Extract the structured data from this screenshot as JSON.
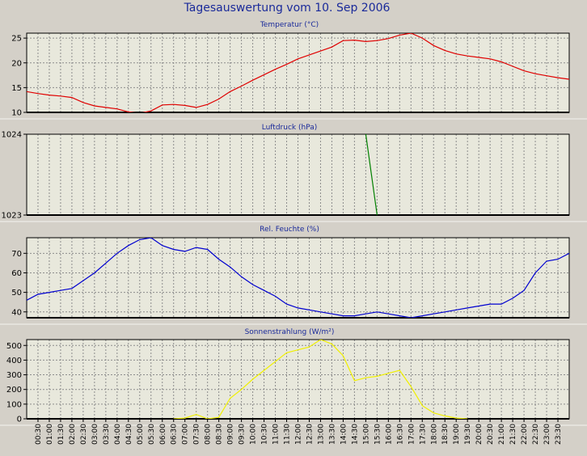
{
  "title": "Tagesauswertung vom 10. Sep 2006",
  "colors": {
    "background": "#d4d0c8",
    "plot_background": "#e8e8dc",
    "grid": "#8c8c8c",
    "title": "#1a2a9a",
    "temperature": "#e00000",
    "pressure": "#008000",
    "humidity": "#0000d0",
    "radiation": "#f0f000"
  },
  "chart_data": [
    {
      "type": "line",
      "title": "Temperatur (°C)",
      "ylim": [
        10,
        26
      ],
      "yticks": [
        10,
        15,
        20,
        25
      ],
      "grid": true,
      "series": [
        {
          "x": [
            0,
            0.5,
            1,
            1.5,
            2,
            2.5,
            3,
            3.5,
            4,
            4.5,
            5,
            5.5,
            6,
            6.5,
            7,
            7.5,
            8,
            8.5,
            9,
            9.5,
            10,
            10.5,
            11,
            11.5,
            12,
            12.5,
            13,
            13.5,
            14,
            14.5,
            15,
            15.5,
            16,
            16.5,
            17,
            17.5,
            18,
            18.5,
            19,
            19.5,
            20,
            20.5,
            21,
            21.5,
            22,
            22.5,
            23,
            23.5,
            24
          ],
          "y": [
            14.2,
            13.8,
            13.5,
            13.3,
            13.0,
            12.0,
            11.3,
            11.0,
            10.7,
            10.1,
            9.8,
            10.3,
            11.5,
            11.6,
            11.4,
            11.0,
            11.6,
            12.7,
            14.2,
            15.3,
            16.5,
            17.6,
            18.7,
            19.7,
            20.8,
            21.6,
            22.4,
            23.2,
            24.5,
            24.6,
            24.3,
            24.5,
            24.9,
            25.6,
            26.0,
            25.0,
            23.5,
            22.5,
            21.8,
            21.4,
            21.1,
            20.8,
            20.2,
            19.3,
            18.4,
            17.8,
            17.4,
            17.0,
            16.7
          ]
        }
      ]
    },
    {
      "type": "line",
      "title": "Luftdruck (hPa)",
      "ylim": [
        1023,
        1024
      ],
      "yticks": [
        1023,
        1024
      ],
      "grid": true,
      "series": [
        {
          "x": [
            15.0,
            15.5
          ],
          "y": [
            1024,
            1023
          ]
        }
      ]
    },
    {
      "type": "line",
      "title": "Rel. Feuchte (%)",
      "ylim": [
        37,
        78
      ],
      "yticks": [
        40,
        50,
        60,
        70
      ],
      "grid": true,
      "series": [
        {
          "x": [
            0,
            0.5,
            1,
            1.5,
            2,
            2.5,
            3,
            3.5,
            4,
            4.5,
            5,
            5.5,
            6,
            6.5,
            7,
            7.5,
            8,
            8.5,
            9,
            9.5,
            10,
            10.5,
            11,
            11.5,
            12,
            12.5,
            13,
            13.5,
            14,
            14.5,
            15,
            15.5,
            16,
            16.5,
            17,
            17.5,
            18,
            18.5,
            19,
            19.5,
            20,
            20.5,
            21,
            21.5,
            22,
            22.5,
            23,
            23.5,
            24
          ],
          "y": [
            46,
            49,
            50,
            51,
            52,
            56,
            60,
            65,
            70,
            74,
            77,
            78,
            74,
            72,
            71,
            73,
            72,
            67,
            63,
            58,
            54,
            51,
            48,
            44,
            42,
            41,
            40,
            39,
            38,
            38,
            39,
            40,
            39,
            38,
            37,
            38,
            39,
            40,
            41,
            42,
            43,
            44,
            44,
            47,
            51,
            60,
            66,
            67,
            70
          ]
        }
      ]
    },
    {
      "type": "line",
      "title": "Sonnenstrahlung (W/m²)",
      "ylim": [
        0,
        540
      ],
      "yticks": [
        0,
        100,
        200,
        300,
        400,
        500
      ],
      "grid": true,
      "series": [
        {
          "x": [
            6.5,
            7,
            7.5,
            8,
            8.5,
            9,
            9.5,
            10,
            10.5,
            11,
            11.5,
            12,
            12.5,
            13,
            13.5,
            14,
            14.5,
            15,
            15.5,
            16,
            16.5,
            17,
            17.5,
            18,
            18.5,
            19,
            19.5
          ],
          "y": [
            0,
            5,
            30,
            0,
            10,
            140,
            200,
            270,
            330,
            390,
            450,
            470,
            490,
            540,
            510,
            430,
            260,
            280,
            290,
            310,
            330,
            220,
            90,
            40,
            20,
            5,
            0
          ]
        }
      ]
    }
  ],
  "x_axis": {
    "tick_labels": [
      "00:30",
      "01:00",
      "01:30",
      "02:00",
      "02:30",
      "03:00",
      "03:30",
      "04:00",
      "04:30",
      "05:00",
      "05:30",
      "06:00",
      "06:30",
      "07:00",
      "07:30",
      "08:00",
      "08:30",
      "09:00",
      "09:30",
      "10:00",
      "10:30",
      "11:00",
      "11:30",
      "12:00",
      "12:30",
      "13:00",
      "13:30",
      "14:00",
      "14:30",
      "15:00",
      "15:30",
      "16:00",
      "16:30",
      "17:00",
      "17:30",
      "18:00",
      "18:30",
      "19:00",
      "19:30",
      "20:00",
      "20:30",
      "21:00",
      "21:30",
      "22:00",
      "22:30",
      "23:00",
      "23:30"
    ]
  }
}
